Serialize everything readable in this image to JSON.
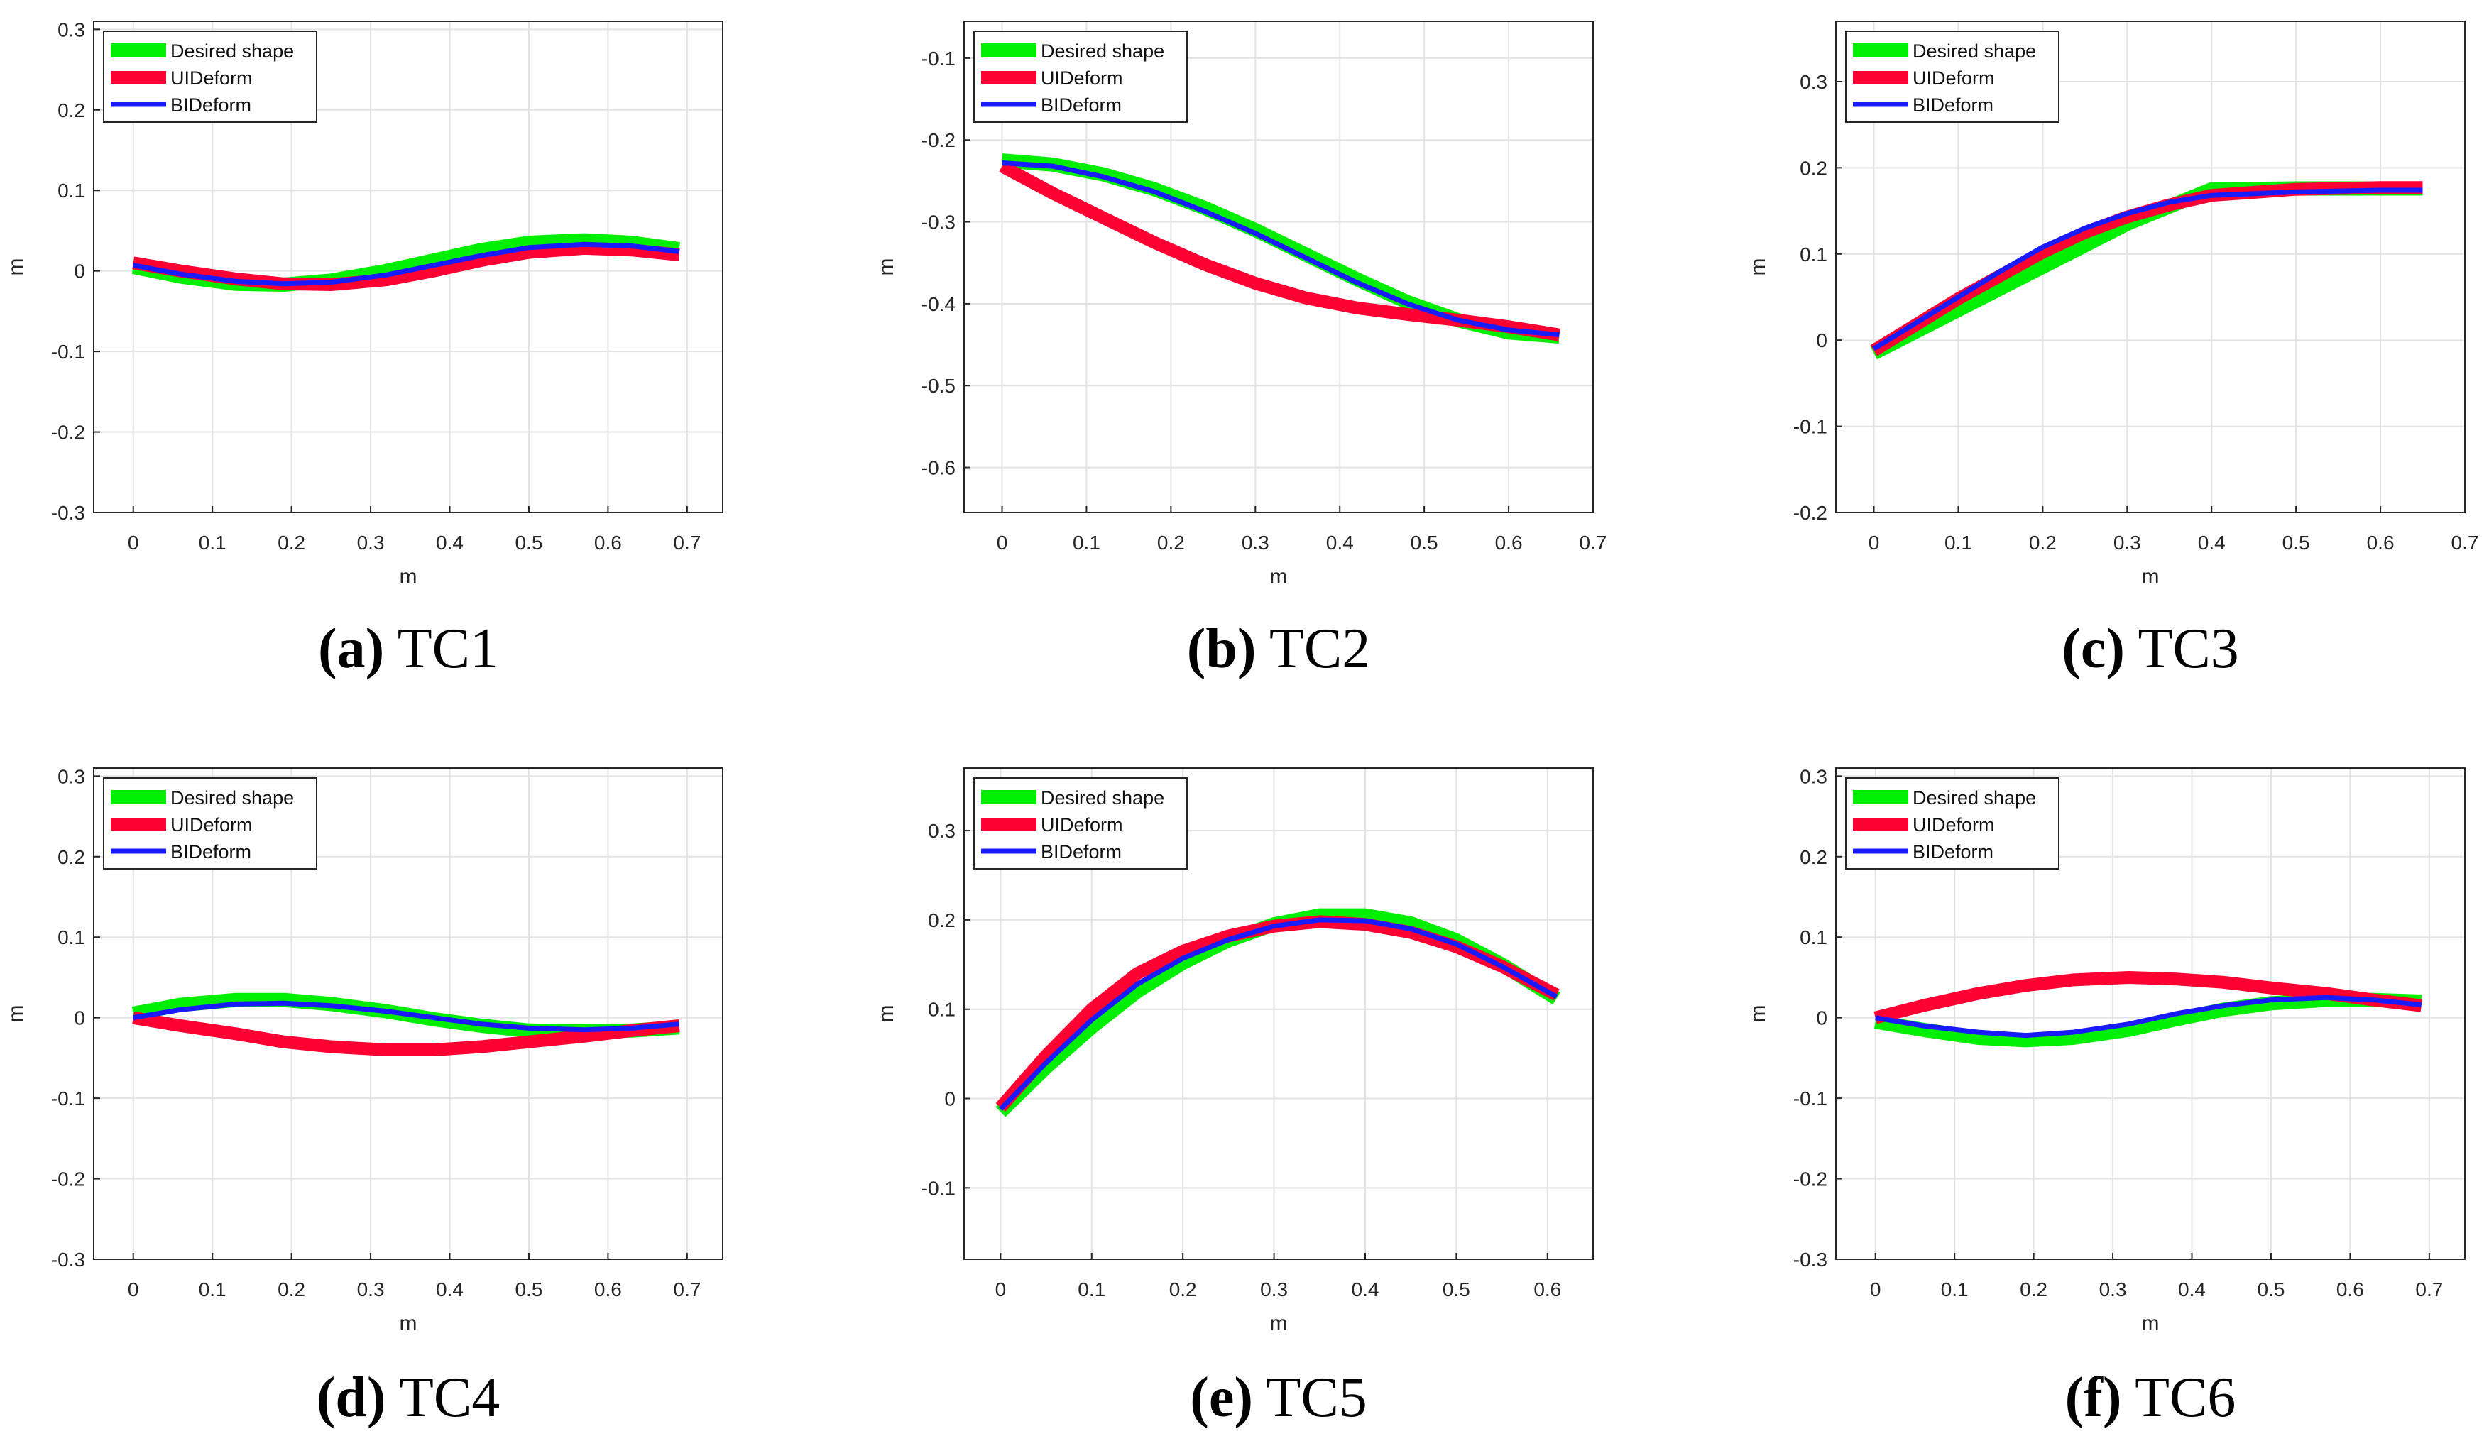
{
  "figure": {
    "legend_entries": [
      "Desired shape",
      "UIDeform",
      "BIDeform"
    ],
    "series_colors": {
      "Desired shape": "#00ee00",
      "UIDeform": "#ff0033",
      "BIDeform": "#1a1aff"
    }
  },
  "chart_data": [
    {
      "type": "line",
      "caption_letter": "(a)",
      "caption_text": "TC1",
      "xlabel": "m",
      "ylabel": "m",
      "xlim": [
        -0.05,
        0.745
      ],
      "ylim": [
        -0.3,
        0.31
      ],
      "xticks": [
        0,
        0.1,
        0.2,
        0.3,
        0.4,
        0.5,
        0.6,
        0.7
      ],
      "xtick_labels": [
        "0",
        "0.1",
        "0.2",
        "0.3",
        "0.4",
        "0.5",
        "0.6",
        "0.7"
      ],
      "yticks": [
        -0.3,
        -0.2,
        -0.1,
        0,
        0.1,
        0.2,
        0.3
      ],
      "ytick_labels": [
        "-0.3",
        "-0.2",
        "-0.1",
        "0",
        "0.1",
        "0.2",
        "0.3"
      ],
      "legend": "top-left",
      "grid": true,
      "series": [
        {
          "name": "Desired shape",
          "x": [
            0,
            0.06,
            0.13,
            0.19,
            0.25,
            0.32,
            0.38,
            0.44,
            0.5,
            0.57,
            0.63,
            0.69
          ],
          "y": [
            0.005,
            -0.007,
            -0.016,
            -0.017,
            -0.012,
            0.0,
            0.013,
            0.026,
            0.035,
            0.038,
            0.035,
            0.027
          ]
        },
        {
          "name": "UIDeform",
          "x": [
            0,
            0.06,
            0.13,
            0.19,
            0.25,
            0.32,
            0.38,
            0.44,
            0.5,
            0.57,
            0.63,
            0.69
          ],
          "y": [
            0.01,
            0.0,
            -0.01,
            -0.016,
            -0.017,
            -0.011,
            0.0,
            0.013,
            0.023,
            0.028,
            0.026,
            0.02
          ]
        },
        {
          "name": "BIDeform",
          "x": [
            0,
            0.06,
            0.13,
            0.19,
            0.25,
            0.32,
            0.38,
            0.44,
            0.5,
            0.57,
            0.63,
            0.69
          ],
          "y": [
            0.007,
            -0.004,
            -0.013,
            -0.016,
            -0.014,
            -0.005,
            0.007,
            0.019,
            0.029,
            0.033,
            0.031,
            0.024
          ]
        }
      ]
    },
    {
      "type": "line",
      "caption_letter": "(b)",
      "caption_text": "TC2",
      "xlabel": "m",
      "ylabel": "m",
      "xlim": [
        -0.045,
        0.7
      ],
      "ylim": [
        -0.655,
        -0.055
      ],
      "xticks": [
        0,
        0.1,
        0.2,
        0.3,
        0.4,
        0.5,
        0.6,
        0.7
      ],
      "xtick_labels": [
        "0",
        "0.1",
        "0.2",
        "0.3",
        "0.4",
        "0.5",
        "0.6",
        "0.7"
      ],
      "yticks": [
        -0.6,
        -0.5,
        -0.4,
        -0.3,
        -0.2,
        -0.1
      ],
      "ytick_labels": [
        "-0.6",
        "-0.5",
        "-0.4",
        "-0.3",
        "-0.2",
        "-0.1"
      ],
      "legend": "top-left",
      "grid": true,
      "series": [
        {
          "name": "Desired shape",
          "x": [
            0,
            0.06,
            0.12,
            0.18,
            0.24,
            0.3,
            0.36,
            0.42,
            0.48,
            0.54,
            0.6,
            0.66
          ],
          "y": [
            -0.225,
            -0.23,
            -0.242,
            -0.26,
            -0.283,
            -0.31,
            -0.34,
            -0.37,
            -0.398,
            -0.42,
            -0.435,
            -0.44
          ]
        },
        {
          "name": "UIDeform",
          "x": [
            0,
            0.06,
            0.12,
            0.18,
            0.24,
            0.3,
            0.36,
            0.42,
            0.48,
            0.54,
            0.6,
            0.66
          ],
          "y": [
            -0.232,
            -0.265,
            -0.295,
            -0.325,
            -0.352,
            -0.375,
            -0.393,
            -0.405,
            -0.413,
            -0.42,
            -0.428,
            -0.438
          ]
        },
        {
          "name": "BIDeform",
          "x": [
            0,
            0.06,
            0.12,
            0.18,
            0.24,
            0.3,
            0.36,
            0.42,
            0.48,
            0.54,
            0.6,
            0.66
          ],
          "y": [
            -0.228,
            -0.232,
            -0.245,
            -0.263,
            -0.287,
            -0.314,
            -0.344,
            -0.374,
            -0.4,
            -0.42,
            -0.432,
            -0.438
          ]
        }
      ]
    },
    {
      "type": "line",
      "caption_letter": "(c)",
      "caption_text": "TC3",
      "xlabel": "m",
      "ylabel": "m",
      "xlim": [
        -0.045,
        0.7
      ],
      "ylim": [
        -0.2,
        0.37
      ],
      "xticks": [
        0,
        0.1,
        0.2,
        0.3,
        0.4,
        0.5,
        0.6,
        0.7
      ],
      "xtick_labels": [
        "0",
        "0.1",
        "0.2",
        "0.3",
        "0.4",
        "0.5",
        "0.6",
        "0.7"
      ],
      "yticks": [
        -0.2,
        -0.1,
        0,
        0.1,
        0.2,
        0.3
      ],
      "ytick_labels": [
        "-0.2",
        "-0.1",
        "0",
        "0.1",
        "0.2",
        "0.3"
      ],
      "legend": "top-left",
      "grid": true,
      "series": [
        {
          "name": "Desired shape",
          "x": [
            0,
            0.1,
            0.2,
            0.3,
            0.4,
            0.5,
            0.6,
            0.65
          ],
          "y": [
            -0.015,
            0.035,
            0.085,
            0.135,
            0.175,
            0.176,
            0.176,
            0.176
          ]
        },
        {
          "name": "UIDeform",
          "x": [
            0,
            0.05,
            0.1,
            0.15,
            0.2,
            0.25,
            0.3,
            0.35,
            0.4,
            0.5,
            0.6,
            0.65
          ],
          "y": [
            -0.012,
            0.018,
            0.048,
            0.075,
            0.102,
            0.125,
            0.143,
            0.157,
            0.168,
            0.175,
            0.177,
            0.177
          ]
        },
        {
          "name": "BIDeform",
          "x": [
            0,
            0.05,
            0.1,
            0.15,
            0.2,
            0.25,
            0.3,
            0.35,
            0.4,
            0.5,
            0.6,
            0.65
          ],
          "y": [
            -0.01,
            0.02,
            0.05,
            0.08,
            0.108,
            0.13,
            0.147,
            0.16,
            0.168,
            0.172,
            0.174,
            0.174
          ]
        }
      ]
    },
    {
      "type": "line",
      "caption_letter": "(d)",
      "caption_text": "TC4",
      "xlabel": "m",
      "ylabel": "m",
      "xlim": [
        -0.05,
        0.745
      ],
      "ylim": [
        -0.3,
        0.31
      ],
      "xticks": [
        0,
        0.1,
        0.2,
        0.3,
        0.4,
        0.5,
        0.6,
        0.7
      ],
      "xtick_labels": [
        "0",
        "0.1",
        "0.2",
        "0.3",
        "0.4",
        "0.5",
        "0.6",
        "0.7"
      ],
      "yticks": [
        -0.3,
        -0.2,
        -0.1,
        0,
        0.1,
        0.2,
        0.3
      ],
      "ytick_labels": [
        "-0.3",
        "-0.2",
        "-0.1",
        "0",
        "0.1",
        "0.2",
        "0.3"
      ],
      "legend": "top-left",
      "grid": true,
      "series": [
        {
          "name": "Desired shape",
          "x": [
            0,
            0.06,
            0.13,
            0.19,
            0.25,
            0.32,
            0.38,
            0.44,
            0.5,
            0.57,
            0.63,
            0.69
          ],
          "y": [
            0.005,
            0.016,
            0.022,
            0.022,
            0.017,
            0.008,
            -0.002,
            -0.01,
            -0.016,
            -0.017,
            -0.016,
            -0.012
          ]
        },
        {
          "name": "UIDeform",
          "x": [
            0,
            0.06,
            0.13,
            0.19,
            0.25,
            0.32,
            0.38,
            0.44,
            0.5,
            0.57,
            0.63,
            0.69
          ],
          "y": [
            0.0,
            -0.01,
            -0.02,
            -0.03,
            -0.036,
            -0.04,
            -0.04,
            -0.036,
            -0.03,
            -0.023,
            -0.016,
            -0.01
          ]
        },
        {
          "name": "BIDeform",
          "x": [
            0,
            0.06,
            0.13,
            0.19,
            0.25,
            0.32,
            0.38,
            0.44,
            0.5,
            0.57,
            0.63,
            0.69
          ],
          "y": [
            0.0,
            0.01,
            0.017,
            0.018,
            0.015,
            0.008,
            0.0,
            -0.008,
            -0.013,
            -0.015,
            -0.013,
            -0.008
          ]
        }
      ]
    },
    {
      "type": "line",
      "caption_letter": "(e)",
      "caption_text": "TC5",
      "xlabel": "m",
      "ylabel": "m",
      "xlim": [
        -0.04,
        0.65
      ],
      "ylim": [
        -0.18,
        0.37
      ],
      "xticks": [
        0,
        0.1,
        0.2,
        0.3,
        0.4,
        0.5,
        0.6
      ],
      "xtick_labels": [
        "0",
        "0.1",
        "0.2",
        "0.3",
        "0.4",
        "0.5",
        "0.6"
      ],
      "yticks": [
        -0.1,
        0,
        0.1,
        0.2,
        0.3
      ],
      "ytick_labels": [
        "-0.1",
        "0",
        "0.1",
        "0.2",
        "0.3"
      ],
      "legend": "top-left",
      "grid": true,
      "series": [
        {
          "name": "Desired shape",
          "x": [
            0,
            0.05,
            0.1,
            0.15,
            0.2,
            0.25,
            0.3,
            0.35,
            0.4,
            0.45,
            0.5,
            0.55,
            0.61
          ],
          "y": [
            -0.015,
            0.035,
            0.08,
            0.12,
            0.152,
            0.177,
            0.195,
            0.205,
            0.205,
            0.196,
            0.177,
            0.15,
            0.112
          ]
        },
        {
          "name": "UIDeform",
          "x": [
            0,
            0.05,
            0.1,
            0.15,
            0.2,
            0.25,
            0.3,
            0.35,
            0.4,
            0.45,
            0.5,
            0.55,
            0.61
          ],
          "y": [
            -0.01,
            0.048,
            0.1,
            0.14,
            0.165,
            0.182,
            0.193,
            0.198,
            0.195,
            0.186,
            0.17,
            0.148,
            0.116
          ]
        },
        {
          "name": "BIDeform",
          "x": [
            0,
            0.05,
            0.1,
            0.15,
            0.2,
            0.25,
            0.3,
            0.35,
            0.4,
            0.45,
            0.5,
            0.55,
            0.61
          ],
          "y": [
            -0.012,
            0.04,
            0.088,
            0.128,
            0.157,
            0.178,
            0.193,
            0.2,
            0.199,
            0.19,
            0.173,
            0.148,
            0.114
          ]
        }
      ]
    },
    {
      "type": "line",
      "caption_letter": "(f)",
      "caption_text": "TC6",
      "xlabel": "m",
      "ylabel": "m",
      "xlim": [
        -0.05,
        0.745
      ],
      "ylim": [
        -0.3,
        0.31
      ],
      "xticks": [
        0,
        0.1,
        0.2,
        0.3,
        0.4,
        0.5,
        0.6,
        0.7
      ],
      "xtick_labels": [
        "0",
        "0.1",
        "0.2",
        "0.3",
        "0.4",
        "0.5",
        "0.6",
        "0.7"
      ],
      "yticks": [
        -0.3,
        -0.2,
        -0.1,
        0,
        0.1,
        0.2,
        0.3
      ],
      "ytick_labels": [
        "-0.3",
        "-0.2",
        "-0.1",
        "0",
        "0.1",
        "0.2",
        "0.3"
      ],
      "legend": "top-left",
      "grid": true,
      "series": [
        {
          "name": "Desired shape",
          "x": [
            0,
            0.06,
            0.13,
            0.19,
            0.25,
            0.32,
            0.38,
            0.44,
            0.5,
            0.57,
            0.63,
            0.69
          ],
          "y": [
            -0.005,
            -0.015,
            -0.025,
            -0.028,
            -0.025,
            -0.015,
            -0.002,
            0.01,
            0.018,
            0.022,
            0.022,
            0.02
          ]
        },
        {
          "name": "UIDeform",
          "x": [
            0,
            0.06,
            0.13,
            0.19,
            0.25,
            0.32,
            0.38,
            0.44,
            0.5,
            0.57,
            0.63,
            0.69
          ],
          "y": [
            0.0,
            0.015,
            0.03,
            0.04,
            0.047,
            0.05,
            0.048,
            0.044,
            0.037,
            0.03,
            0.022,
            0.015
          ]
        },
        {
          "name": "BIDeform",
          "x": [
            0,
            0.06,
            0.13,
            0.19,
            0.25,
            0.32,
            0.38,
            0.44,
            0.5,
            0.57,
            0.63,
            0.69
          ],
          "y": [
            0.0,
            -0.01,
            -0.018,
            -0.022,
            -0.018,
            -0.008,
            0.005,
            0.015,
            0.022,
            0.025,
            0.022,
            0.016
          ]
        }
      ]
    }
  ]
}
